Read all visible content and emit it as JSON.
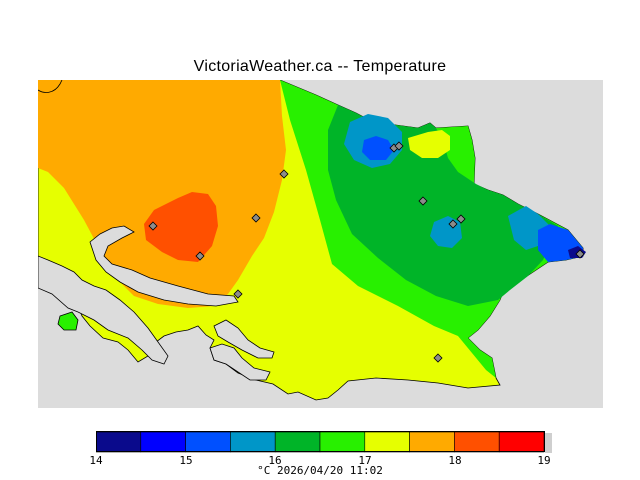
{
  "title": "VictoriaWeather.ca -- Temperature",
  "legend": {
    "ticks": [
      "14",
      "15",
      "16",
      "17",
      "18",
      "19"
    ],
    "bands": [
      {
        "from": 14.0,
        "to": 14.5,
        "color": "#0a0a8c"
      },
      {
        "from": 14.5,
        "to": 15.0,
        "color": "#0000ff"
      },
      {
        "from": 15.0,
        "to": 15.5,
        "color": "#0050ff"
      },
      {
        "from": 15.5,
        "to": 16.0,
        "color": "#0096c8"
      },
      {
        "from": 16.0,
        "to": 16.5,
        "color": "#00b428"
      },
      {
        "from": 16.5,
        "to": 17.0,
        "color": "#28f000"
      },
      {
        "from": 17.0,
        "to": 17.5,
        "color": "#e6ff00"
      },
      {
        "from": 17.5,
        "to": 18.0,
        "color": "#ffaa00"
      },
      {
        "from": 18.0,
        "to": 18.5,
        "color": "#ff5000"
      },
      {
        "from": 18.5,
        "to": 19.0,
        "color": "#ff0000"
      }
    ]
  },
  "footer": "°C  2026/04/20 11:02",
  "colors": {
    "background": "#dcdcdc",
    "station": "#8c8c8c"
  }
}
